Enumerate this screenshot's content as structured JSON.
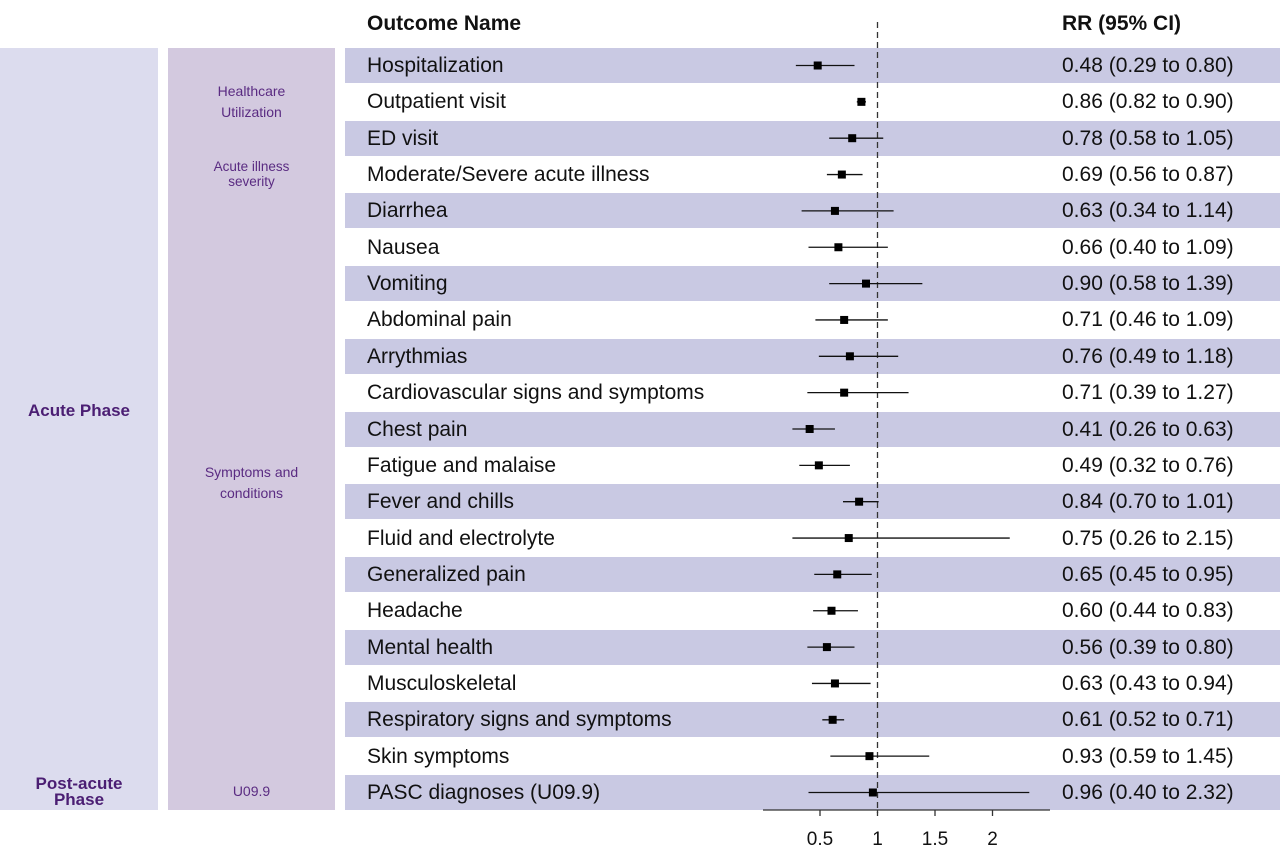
{
  "header": {
    "outcome_col": "Outcome Name",
    "rr_col": "RR (95% CI)"
  },
  "phases": [
    {
      "label": "Acute Phase",
      "first_row": 0,
      "last_row": 19
    },
    {
      "label": "Post-acute Phase",
      "first_row": 20,
      "last_row": 20
    }
  ],
  "categories": [
    {
      "label": "Healthcare Utilization",
      "first_row": 0,
      "last_row": 2
    },
    {
      "label": "Acute illness severity",
      "first_row": 3,
      "last_row": 3
    },
    {
      "label": "Symptoms and conditions",
      "first_row": 4,
      "last_row": 19
    },
    {
      "label": "U09.9",
      "first_row": 20,
      "last_row": 20
    }
  ],
  "chart_data": {
    "type": "forest",
    "reference_line": 1,
    "xticks": [
      0.5,
      1,
      1.5,
      2
    ],
    "xtick_labels": [
      "0.5",
      "1",
      "1.5",
      "2"
    ],
    "rows": [
      {
        "name": "Hospitalization",
        "rr": 0.48,
        "lo": 0.29,
        "hi": 0.8,
        "label": "0.48 (0.29 to 0.80)"
      },
      {
        "name": "Outpatient visit",
        "rr": 0.86,
        "lo": 0.82,
        "hi": 0.9,
        "label": "0.86 (0.82 to 0.90)"
      },
      {
        "name": "ED visit",
        "rr": 0.78,
        "lo": 0.58,
        "hi": 1.05,
        "label": "0.78 (0.58 to 1.05)"
      },
      {
        "name": "Moderate/Severe acute illness",
        "rr": 0.69,
        "lo": 0.56,
        "hi": 0.87,
        "label": "0.69 (0.56 to 0.87)"
      },
      {
        "name": "Diarrhea",
        "rr": 0.63,
        "lo": 0.34,
        "hi": 1.14,
        "label": "0.63 (0.34 to 1.14)"
      },
      {
        "name": "Nausea",
        "rr": 0.66,
        "lo": 0.4,
        "hi": 1.09,
        "label": "0.66 (0.40 to 1.09)"
      },
      {
        "name": "Vomiting",
        "rr": 0.9,
        "lo": 0.58,
        "hi": 1.39,
        "label": "0.90 (0.58 to 1.39)"
      },
      {
        "name": "Abdominal pain",
        "rr": 0.71,
        "lo": 0.46,
        "hi": 1.09,
        "label": "0.71 (0.46 to 1.09)"
      },
      {
        "name": "Arrythmias",
        "rr": 0.76,
        "lo": 0.49,
        "hi": 1.18,
        "label": "0.76 (0.49 to 1.18)"
      },
      {
        "name": "Cardiovascular signs and symptoms",
        "rr": 0.71,
        "lo": 0.39,
        "hi": 1.27,
        "label": "0.71 (0.39 to 1.27)"
      },
      {
        "name": "Chest pain",
        "rr": 0.41,
        "lo": 0.26,
        "hi": 0.63,
        "label": "0.41 (0.26 to 0.63)"
      },
      {
        "name": "Fatigue and malaise",
        "rr": 0.49,
        "lo": 0.32,
        "hi": 0.76,
        "label": "0.49 (0.32 to 0.76)"
      },
      {
        "name": "Fever and chills",
        "rr": 0.84,
        "lo": 0.7,
        "hi": 1.01,
        "label": "0.84 (0.70 to 1.01)"
      },
      {
        "name": "Fluid and electrolyte",
        "rr": 0.75,
        "lo": 0.26,
        "hi": 2.15,
        "label": "0.75 (0.26 to 2.15)"
      },
      {
        "name": "Generalized pain",
        "rr": 0.65,
        "lo": 0.45,
        "hi": 0.95,
        "label": "0.65 (0.45 to 0.95)"
      },
      {
        "name": "Headache",
        "rr": 0.6,
        "lo": 0.44,
        "hi": 0.83,
        "label": "0.60 (0.44 to 0.83)"
      },
      {
        "name": "Mental health",
        "rr": 0.56,
        "lo": 0.39,
        "hi": 0.8,
        "label": "0.56 (0.39 to 0.80)"
      },
      {
        "name": "Musculoskeletal",
        "rr": 0.63,
        "lo": 0.43,
        "hi": 0.94,
        "label": "0.63 (0.43 to 0.94)"
      },
      {
        "name": "Respiratory signs and symptoms",
        "rr": 0.61,
        "lo": 0.52,
        "hi": 0.71,
        "label": "0.61 (0.52 to 0.71)"
      },
      {
        "name": "Skin symptoms",
        "rr": 0.93,
        "lo": 0.59,
        "hi": 1.45,
        "label": "0.93 (0.59 to 1.45)"
      },
      {
        "name": "PASC diagnoses (U09.9)",
        "rr": 0.96,
        "lo": 0.4,
        "hi": 2.32,
        "label": "0.96 (0.40 to 2.32)"
      }
    ]
  }
}
